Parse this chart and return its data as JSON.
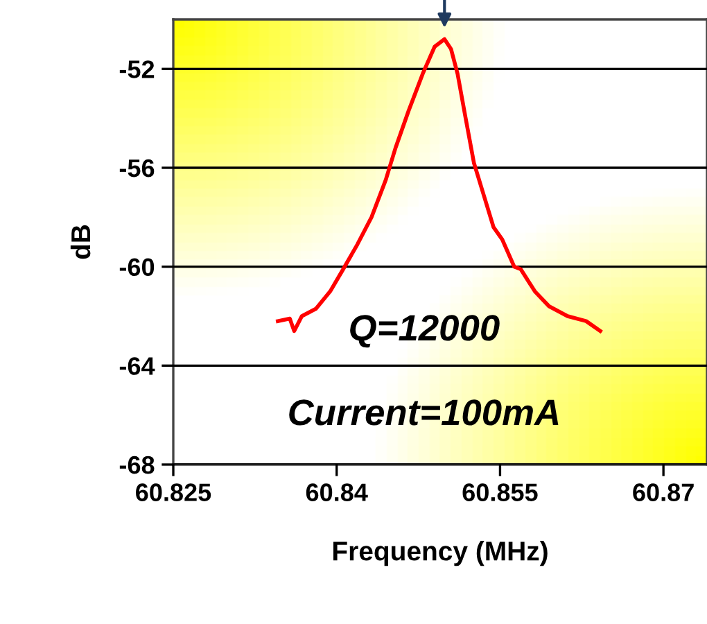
{
  "chart_data": {
    "type": "line",
    "xlabel": "Frequency (MHz)",
    "ylabel": "dB",
    "x": [
      60.8346,
      60.8357,
      60.8361,
      60.8368,
      60.8381,
      60.8394,
      60.8406,
      60.8419,
      60.8432,
      60.8445,
      60.8454,
      60.8466,
      60.8479,
      60.849,
      60.8499,
      60.8505,
      60.8511,
      60.8518,
      60.8526,
      60.8535,
      60.8544,
      60.8552,
      60.8563,
      60.8569,
      60.8582,
      60.8595,
      60.8612,
      60.8629,
      60.8642
    ],
    "series": [
      {
        "color": "#ff0000",
        "values": [
          -62.2,
          -62.1,
          -62.6,
          -62.0,
          -61.7,
          -61.0,
          -60.1,
          -59.1,
          -58.0,
          -56.5,
          -55.2,
          -53.7,
          -52.2,
          -51.1,
          -50.8,
          -51.2,
          -52.2,
          -53.9,
          -55.8,
          -57.1,
          -58.4,
          -58.9,
          -60.0,
          -60.1,
          -61.0,
          -61.6,
          -62.0,
          -62.2,
          -62.6
        ]
      }
    ],
    "xlim": [
      60.825,
      60.874
    ],
    "ylim": [
      -68,
      -50
    ],
    "xticks": [
      {
        "value": 60.825,
        "label": "60.825"
      },
      {
        "value": 60.84,
        "label": "60.84"
      },
      {
        "value": 60.855,
        "label": "60.855"
      },
      {
        "value": 60.87,
        "label": "60.87"
      }
    ],
    "yticks": [
      -68,
      -64,
      -60,
      -56,
      -52
    ],
    "grid": "y",
    "marker": "none",
    "line_style": "solid",
    "annotations": [
      "Q=12000",
      "Current=100mA"
    ]
  }
}
